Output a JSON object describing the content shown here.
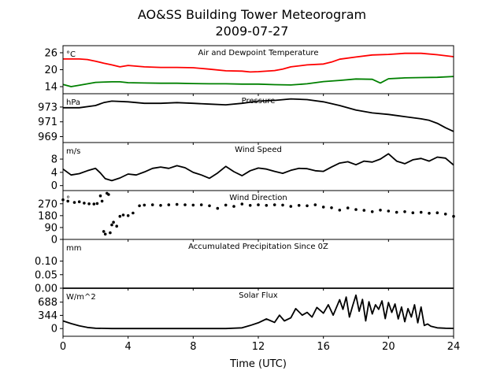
{
  "figure": {
    "title": "AO&SS Building Tower Meteorogram",
    "subtitle": "2009-07-27",
    "xlabel": "Time (UTC)",
    "xticks": [
      "0",
      "4",
      "8",
      "12",
      "16",
      "20",
      "24"
    ]
  },
  "chart_data": [
    {
      "type": "line",
      "title": "Air and Dewpoint Temperature",
      "ylabel": "°C",
      "xlim": [
        0,
        24
      ],
      "ylim": [
        11.5,
        28.5
      ],
      "yticks": [
        14,
        20,
        26
      ],
      "ytick_labels": [
        "14",
        "20",
        "26"
      ],
      "series": [
        {
          "color": "#ff0000",
          "x": [
            0,
            1,
            1.5,
            2,
            2.5,
            3,
            3.5,
            4,
            5,
            6,
            7,
            8,
            9,
            10,
            11,
            11.5,
            12,
            13,
            13.5,
            14,
            15,
            16,
            16.5,
            17,
            18,
            19,
            20,
            21,
            22,
            23,
            24
          ],
          "values": [
            23.8,
            23.8,
            23.6,
            23,
            22.3,
            21.7,
            21,
            21.5,
            21,
            20.8,
            20.8,
            20.7,
            20.2,
            19.6,
            19.5,
            19.2,
            19.3,
            19.7,
            20.2,
            21,
            21.7,
            22,
            22.7,
            23.7,
            24.5,
            25.2,
            25.4,
            25.8,
            25.8,
            25.3,
            24.6
          ]
        },
        {
          "color": "#008000",
          "x": [
            0,
            0.5,
            1,
            2,
            3,
            3.5,
            4,
            5,
            6,
            7,
            8,
            9,
            10,
            11,
            12,
            13,
            14,
            15,
            16,
            17,
            18,
            19,
            19.5,
            20,
            21,
            22,
            23,
            24
          ],
          "values": [
            14.8,
            14,
            14.5,
            15.5,
            15.7,
            15.7,
            15.4,
            15.3,
            15.2,
            15.2,
            15.1,
            15,
            15,
            14.9,
            14.9,
            14.7,
            14.6,
            15,
            15.8,
            16.2,
            16.7,
            16.6,
            15.3,
            16.8,
            17.1,
            17.2,
            17.3,
            17.6
          ]
        }
      ]
    },
    {
      "type": "line",
      "title": "Pressure",
      "ylabel": "hPa",
      "xlim": [
        0,
        24
      ],
      "ylim": [
        968.2,
        974.8
      ],
      "yticks": [
        969,
        971,
        973
      ],
      "ytick_labels": [
        "969",
        "971",
        "973"
      ],
      "series": [
        {
          "color": "#000000",
          "x": [
            0,
            1,
            2,
            2.5,
            3,
            4,
            5,
            6,
            7,
            8,
            9,
            10,
            11,
            12,
            13,
            14,
            15,
            16,
            17,
            18,
            19,
            20,
            21,
            22,
            22.5,
            23,
            23.5,
            24
          ],
          "values": [
            972.9,
            972.9,
            973.2,
            973.6,
            973.8,
            973.7,
            973.5,
            973.5,
            973.6,
            973.5,
            973.4,
            973.3,
            973.5,
            973.8,
            973.9,
            974.1,
            974.0,
            973.7,
            973.2,
            972.6,
            972.2,
            972.0,
            971.7,
            971.4,
            971.2,
            970.8,
            970.2,
            969.7
          ]
        }
      ]
    },
    {
      "type": "line",
      "title": "Wind Speed",
      "ylabel": "m/s",
      "xlim": [
        0,
        24
      ],
      "ylim": [
        -1.5,
        13
      ],
      "yticks": [
        0,
        4,
        8
      ],
      "ytick_labels": [
        "0",
        "4",
        "8"
      ],
      "series": [
        {
          "color": "#000000",
          "x": [
            0,
            0.5,
            1,
            1.5,
            2,
            2.3,
            2.6,
            3,
            3.5,
            4,
            4.5,
            5,
            5.5,
            6,
            6.5,
            7,
            7.5,
            8,
            8.5,
            9,
            9.5,
            10,
            10.5,
            11,
            11.5,
            12,
            12.5,
            13,
            13.5,
            14,
            14.5,
            15,
            15.5,
            16,
            16.5,
            17,
            17.5,
            18,
            18.5,
            19,
            19.5,
            20,
            20.5,
            21,
            21.5,
            22,
            22.5,
            23,
            23.5,
            24
          ],
          "values": [
            5,
            3.2,
            3.6,
            4.5,
            5.2,
            3.8,
            2.1,
            1.5,
            2.3,
            3.5,
            3.2,
            4.1,
            5.2,
            5.6,
            5.2,
            6,
            5.4,
            4,
            3.2,
            2.2,
            3.8,
            5.8,
            4.2,
            3,
            4.5,
            5.3,
            5,
            4.3,
            3.7,
            4.6,
            5.2,
            5.1,
            4.5,
            4.3,
            5.6,
            6.8,
            7.2,
            6.3,
            7.4,
            7.1,
            8,
            9.6,
            7.4,
            6.6,
            7.8,
            8.2,
            7.4,
            8.6,
            8.3,
            6.2
          ]
        }
      ]
    },
    {
      "type": "scatter",
      "title": "Wind Direction",
      "ylabel": "°",
      "xlim": [
        0,
        24
      ],
      "ylim": [
        0,
        370
      ],
      "yticks": [
        0,
        90,
        180,
        270
      ],
      "ytick_labels": [
        "0",
        "90",
        "180",
        "270"
      ],
      "series": [
        {
          "color": "#000000",
          "x": [
            0,
            0.3,
            0.7,
            1,
            1.3,
            1.6,
            1.9,
            2.1,
            2.3,
            2.4,
            2.5,
            2.6,
            2.7,
            2.8,
            2.9,
            3.0,
            3.1,
            3.3,
            3.5,
            3.7,
            4,
            4.3,
            4.7,
            5,
            5.5,
            6,
            6.5,
            7,
            7.5,
            8,
            8.5,
            9,
            9.5,
            10,
            10.5,
            11,
            11.5,
            12,
            12.5,
            13,
            13.5,
            14,
            14.5,
            15,
            15.5,
            16,
            16.5,
            17,
            17.5,
            18,
            18.5,
            19,
            19.5,
            20,
            20.5,
            21,
            21.5,
            22,
            22.5,
            23,
            23.5,
            24
          ],
          "values": [
            300,
            290,
            280,
            285,
            275,
            270,
            268,
            272,
            330,
            290,
            60,
            40,
            350,
            340,
            50,
            110,
            130,
            100,
            175,
            185,
            180,
            200,
            255,
            260,
            262,
            258,
            262,
            265,
            262,
            260,
            262,
            255,
            235,
            260,
            250,
            268,
            258,
            262,
            258,
            262,
            260,
            250,
            258,
            255,
            262,
            245,
            240,
            222,
            238,
            226,
            220,
            210,
            222,
            215,
            205,
            210,
            202,
            205,
            198,
            202,
            192,
            175
          ]
        }
      ]
    },
    {
      "type": "line",
      "title": "Accumulated Precipitation Since 0Z",
      "ylabel": "mm",
      "xlim": [
        0,
        24
      ],
      "ylim": [
        0,
        0.18
      ],
      "yticks": [
        0,
        0.05,
        0.1
      ],
      "ytick_labels": [
        "0.00",
        "0.05",
        "0.10"
      ],
      "series": [
        {
          "color": "#000000",
          "x": [
            0,
            24
          ],
          "values": [
            0,
            0
          ]
        }
      ]
    },
    {
      "type": "line",
      "title": "Solar Flux",
      "ylabel": "W/m^2",
      "xlim": [
        0,
        24
      ],
      "ylim": [
        -200,
        1050
      ],
      "yticks": [
        0,
        344,
        688
      ],
      "ytick_labels": [
        "0",
        "344",
        "688"
      ],
      "series": [
        {
          "color": "#000000",
          "x": [
            0,
            0.5,
            1,
            1.5,
            2,
            3,
            4,
            6,
            8,
            10,
            11,
            11.5,
            12,
            12.5,
            13,
            13.3,
            13.6,
            14,
            14.3,
            14.7,
            15,
            15.3,
            15.6,
            16,
            16.3,
            16.6,
            17,
            17.2,
            17.4,
            17.6,
            17.8,
            18,
            18.2,
            18.4,
            18.6,
            18.8,
            19,
            19.2,
            19.4,
            19.6,
            19.8,
            20,
            20.2,
            20.4,
            20.6,
            20.8,
            21,
            21.2,
            21.4,
            21.6,
            21.8,
            22,
            22.2,
            22.4,
            22.6,
            22.8,
            23,
            23.5,
            24
          ],
          "values": [
            200,
            130,
            70,
            30,
            10,
            0,
            0,
            0,
            0,
            0,
            20,
            80,
            150,
            250,
            160,
            350,
            200,
            280,
            520,
            350,
            420,
            300,
            550,
            400,
            620,
            350,
            750,
            500,
            820,
            300,
            600,
            870,
            450,
            760,
            200,
            700,
            380,
            620,
            500,
            720,
            260,
            680,
            420,
            640,
            250,
            560,
            180,
            520,
            300,
            620,
            150,
            560,
            80,
            120,
            60,
            40,
            20,
            10,
            5
          ]
        }
      ]
    }
  ]
}
